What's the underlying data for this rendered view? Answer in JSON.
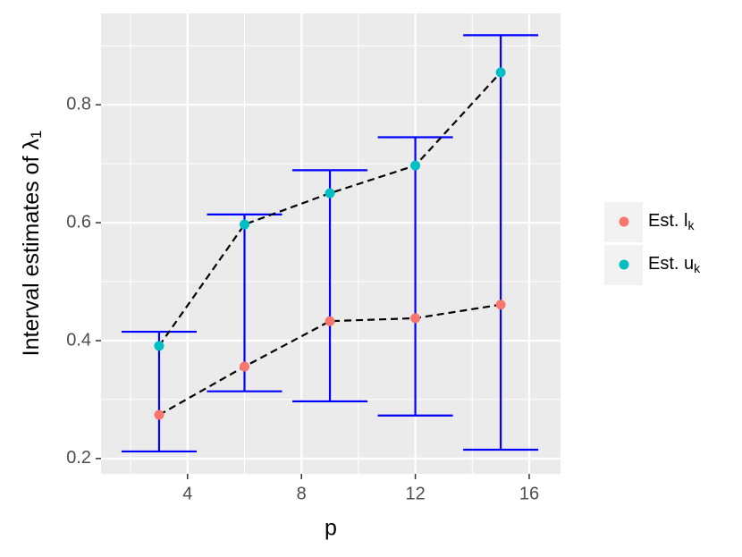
{
  "chart_data": {
    "type": "scatter",
    "x_label": "p",
    "y_label": "Interval estimates of λ",
    "y_label_subscript": "1",
    "x": [
      3,
      6,
      9,
      12,
      15
    ],
    "series": [
      {
        "name": "Est. l",
        "name_subscript": "k",
        "color": "#f8766d",
        "values": [
          0.274,
          0.356,
          0.433,
          0.438,
          0.461
        ]
      },
      {
        "name": "Est. u",
        "name_subscript": "k",
        "color": "#00bfc4",
        "values": [
          0.391,
          0.597,
          0.65,
          0.697,
          0.855
        ]
      }
    ],
    "errorbars": {
      "color": "#0000ff",
      "ymin": [
        0.212,
        0.314,
        0.297,
        0.273,
        0.215
      ],
      "ymax": [
        0.415,
        0.614,
        0.689,
        0.745,
        0.918
      ]
    },
    "connect_lines": true,
    "line_color": "#000000",
    "xlim": [
      0.96,
      17.1
    ],
    "ylim": [
      0.174,
      0.955
    ],
    "xticks": [
      4,
      8,
      12,
      16
    ],
    "yticks": [
      0.2,
      0.4,
      0.6,
      0.8
    ],
    "x_minor_grid": [
      2,
      6,
      10,
      14
    ],
    "y_minor_grid": [
      0.3,
      0.5,
      0.7,
      0.9
    ],
    "grid": true,
    "legend": "right"
  }
}
